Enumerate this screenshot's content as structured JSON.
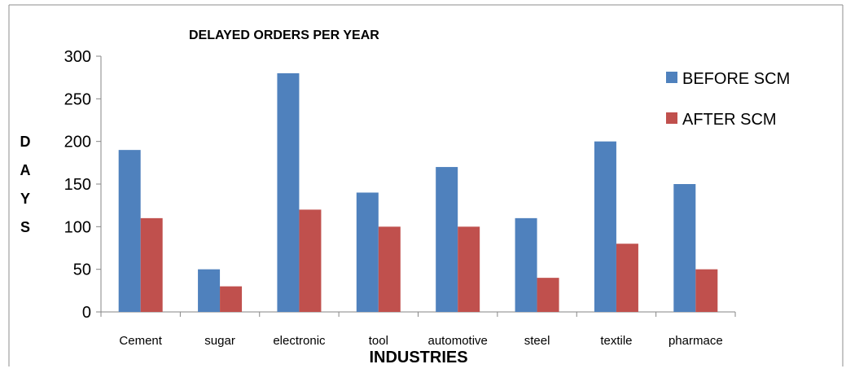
{
  "chart_data": {
    "type": "bar",
    "title": "DELAYED ORDERS PER YEAR",
    "xlabel": "INDUSTRIES",
    "ylabel": "DAYS",
    "categories": [
      "Cement",
      "sugar",
      "electronic",
      "tool",
      "automotive",
      "steel",
      "textile",
      "pharmace"
    ],
    "series": [
      {
        "name": "BEFORE SCM",
        "color": "#4F81BD",
        "values": [
          190,
          50,
          280,
          140,
          170,
          110,
          200,
          150
        ]
      },
      {
        "name": "AFTER SCM",
        "color": "#C0504D",
        "values": [
          110,
          30,
          120,
          100,
          100,
          40,
          80,
          50
        ]
      }
    ],
    "ylim": [
      0,
      300
    ],
    "yticks": [
      0,
      50,
      100,
      150,
      200,
      250,
      300
    ],
    "legend": "right",
    "grid": false
  }
}
